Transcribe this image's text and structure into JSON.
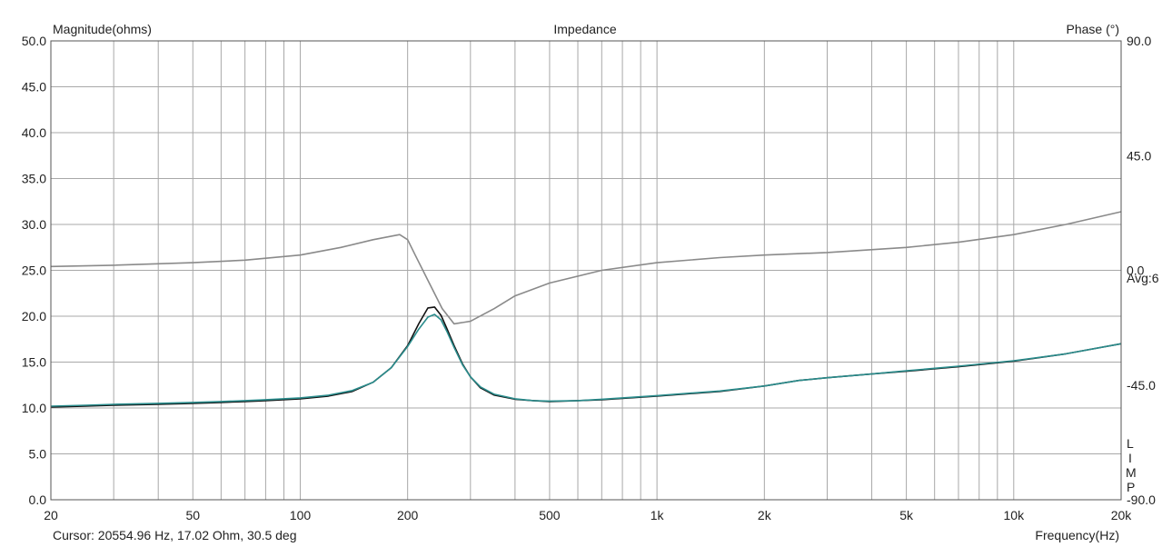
{
  "header": {
    "left_axis_title": "Magnitude(ohms)",
    "title": "Impedance",
    "right_axis_title": "Phase (°)"
  },
  "side_labels": {
    "avg": "Avg:6",
    "limp_letters": [
      "L",
      "I",
      "M",
      "P"
    ]
  },
  "footer": {
    "cursor": "Cursor: 20554.96 Hz, 17.02 Ohm, 30.5 deg",
    "xlabel": "Frequency(Hz)"
  },
  "colors": {
    "background": "#ffffff",
    "grid": "#a8a8a8",
    "magnitude_black": "#111111",
    "magnitude_teal": "#2a8c8c",
    "phase": "#8a8a8a"
  },
  "chart_data": {
    "type": "line",
    "title": "Impedance",
    "xlabel": "Frequency(Hz)",
    "ylabel": "Magnitude(ohms)",
    "y2label": "Phase (°)",
    "x_scale": "log",
    "xlim": [
      20,
      20000
    ],
    "ylim": [
      0,
      50
    ],
    "y2lim": [
      -90,
      90
    ],
    "grid": true,
    "x_ticks": [
      {
        "value": 20,
        "label": "20"
      },
      {
        "value": 50,
        "label": "50"
      },
      {
        "value": 100,
        "label": "100"
      },
      {
        "value": 200,
        "label": "200"
      },
      {
        "value": 500,
        "label": "500"
      },
      {
        "value": 1000,
        "label": "1k"
      },
      {
        "value": 2000,
        "label": "2k"
      },
      {
        "value": 5000,
        "label": "5k"
      },
      {
        "value": 10000,
        "label": "10k"
      },
      {
        "value": 20000,
        "label": "20k"
      }
    ],
    "y_ticks": [
      {
        "value": 50,
        "label": "50.0"
      },
      {
        "value": 45,
        "label": "45.0"
      },
      {
        "value": 40,
        "label": "40.0"
      },
      {
        "value": 35,
        "label": "35.0"
      },
      {
        "value": 30,
        "label": "30.0"
      },
      {
        "value": 25,
        "label": "25.0"
      },
      {
        "value": 20,
        "label": "20.0"
      },
      {
        "value": 15,
        "label": "15.0"
      },
      {
        "value": 10,
        "label": "10.0"
      },
      {
        "value": 5,
        "label": "5.0"
      },
      {
        "value": 0,
        "label": "0.0"
      }
    ],
    "y2_ticks": [
      {
        "value": 90,
        "label": "90.0"
      },
      {
        "value": 45,
        "label": "45.0"
      },
      {
        "value": 0,
        "label": "0.0"
      },
      {
        "value": -45,
        "label": "-45.0"
      },
      {
        "value": -90,
        "label": "-90.0"
      }
    ],
    "series": [
      {
        "axis": "left",
        "color": "#111111",
        "x": [
          20,
          25,
          30,
          40,
          50,
          60,
          70,
          80,
          100,
          120,
          140,
          160,
          180,
          200,
          215,
          228,
          238,
          248,
          258,
          270,
          285,
          300,
          320,
          350,
          400,
          450,
          500,
          600,
          700,
          800,
          1000,
          1500,
          2000,
          2500,
          3000,
          4000,
          5000,
          7000,
          10000,
          14000,
          20000
        ],
        "y": [
          10.1,
          10.2,
          10.3,
          10.4,
          10.5,
          10.6,
          10.7,
          10.8,
          11.0,
          11.3,
          11.8,
          12.8,
          14.4,
          16.8,
          19.2,
          20.9,
          21.0,
          20.1,
          18.6,
          16.8,
          14.8,
          13.4,
          12.2,
          11.4,
          10.95,
          10.8,
          10.7,
          10.8,
          10.9,
          11.05,
          11.3,
          11.8,
          12.4,
          13.0,
          13.3,
          13.7,
          14.0,
          14.5,
          15.1,
          15.9,
          17.0
        ]
      },
      {
        "axis": "left",
        "color": "#2a8c8c",
        "x": [
          20,
          25,
          30,
          40,
          50,
          60,
          70,
          80,
          100,
          120,
          140,
          160,
          180,
          200,
          215,
          228,
          238,
          248,
          258,
          270,
          285,
          300,
          320,
          350,
          400,
          450,
          500,
          600,
          700,
          800,
          1000,
          1500,
          2000,
          2500,
          3000,
          4000,
          5000,
          7000,
          10000,
          14000,
          20000
        ],
        "y": [
          10.2,
          10.3,
          10.4,
          10.5,
          10.6,
          10.7,
          10.8,
          10.9,
          11.1,
          11.4,
          11.9,
          12.8,
          14.4,
          16.7,
          18.6,
          19.9,
          20.2,
          19.6,
          18.3,
          16.6,
          14.7,
          13.4,
          12.3,
          11.5,
          11.0,
          10.8,
          10.75,
          10.8,
          10.95,
          11.1,
          11.35,
          11.85,
          12.4,
          13.0,
          13.3,
          13.7,
          14.05,
          14.55,
          15.15,
          15.9,
          17.0
        ]
      },
      {
        "axis": "right",
        "color": "#8a8a8a",
        "x": [
          20,
          30,
          50,
          70,
          100,
          130,
          160,
          190,
          200,
          210,
          230,
          250,
          270,
          300,
          350,
          400,
          500,
          700,
          1000,
          1500,
          2000,
          3000,
          5000,
          7000,
          10000,
          14000,
          20000
        ],
        "y": [
          1.5,
          2.0,
          3.0,
          4.0,
          6.0,
          9.0,
          12.0,
          14.0,
          12.0,
          6.0,
          -5.0,
          -15.0,
          -21.0,
          -20.0,
          -15.0,
          -10.0,
          -5.0,
          0.0,
          3.0,
          5.0,
          6.0,
          7.0,
          9.0,
          11.0,
          14.0,
          18.0,
          23.0
        ]
      }
    ]
  }
}
